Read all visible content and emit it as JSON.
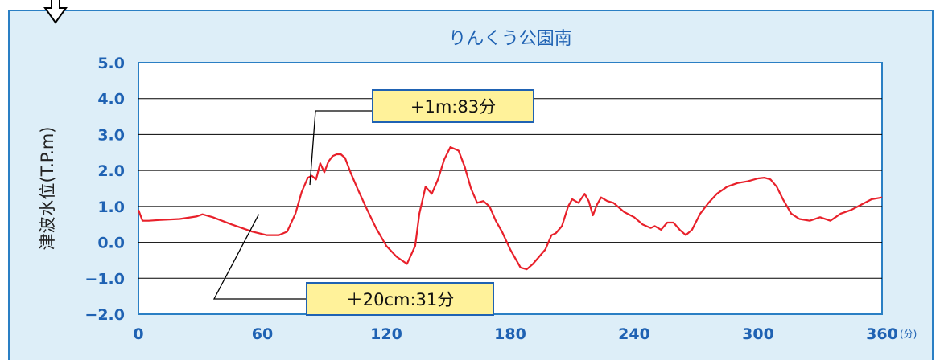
{
  "chart_data": {
    "type": "line",
    "title": "りんくう公園南",
    "ylabel": "津波水位(T.P.m)",
    "x_unit": "(分)",
    "xlim": [
      0,
      360
    ],
    "ylim": [
      -2.0,
      5.0
    ],
    "x_ticks": [
      0,
      60,
      120,
      180,
      240,
      300,
      360
    ],
    "y_ticks": [
      "5.0",
      "4.0",
      "3.0",
      "2.0",
      "1.0",
      "0.0",
      "−1.0",
      "−2.0"
    ],
    "grid": true,
    "series_color": "#e8202a",
    "series": [
      {
        "x": [
          0,
          2,
          5,
          10,
          20,
          28,
          31,
          36,
          45,
          55,
          62,
          68,
          72,
          76,
          79,
          82,
          84,
          86,
          88,
          90,
          92,
          94,
          96,
          98,
          100,
          103,
          106,
          110,
          115,
          120,
          125,
          130,
          134,
          136,
          139,
          142,
          145,
          148,
          151,
          153,
          155,
          158,
          161,
          164,
          167,
          170,
          173,
          176,
          180,
          185,
          188,
          191,
          194,
          197,
          200,
          202,
          205,
          208,
          210,
          213,
          216,
          218,
          220,
          222,
          224,
          227,
          230,
          235,
          240,
          244,
          248,
          250,
          253,
          256,
          259,
          262,
          265,
          268,
          272,
          276,
          280,
          285,
          290,
          295,
          300,
          303,
          306,
          309,
          312,
          316,
          320,
          325,
          330,
          335,
          340,
          345,
          350,
          355,
          360
        ],
        "y": [
          0.9,
          0.6,
          0.6,
          0.62,
          0.65,
          0.72,
          0.78,
          0.7,
          0.5,
          0.3,
          0.2,
          0.2,
          0.3,
          0.8,
          1.4,
          1.8,
          1.85,
          1.75,
          2.2,
          1.95,
          2.25,
          2.4,
          2.45,
          2.45,
          2.35,
          1.9,
          1.5,
          1.0,
          0.4,
          -0.1,
          -0.4,
          -0.6,
          -0.1,
          0.8,
          1.55,
          1.35,
          1.75,
          2.3,
          2.65,
          2.6,
          2.55,
          2.1,
          1.5,
          1.1,
          1.15,
          1.0,
          0.6,
          0.3,
          -0.2,
          -0.7,
          -0.75,
          -0.6,
          -0.4,
          -0.2,
          0.2,
          0.25,
          0.45,
          1.0,
          1.2,
          1.1,
          1.35,
          1.15,
          0.75,
          1.05,
          1.25,
          1.15,
          1.1,
          0.85,
          0.7,
          0.5,
          0.4,
          0.45,
          0.35,
          0.55,
          0.55,
          0.35,
          0.2,
          0.35,
          0.8,
          1.1,
          1.35,
          1.55,
          1.65,
          1.7,
          1.78,
          1.8,
          1.75,
          1.55,
          1.2,
          0.8,
          0.65,
          0.6,
          0.7,
          0.6,
          0.8,
          0.9,
          1.05,
          1.2,
          1.25
        ]
      }
    ],
    "annotations": [
      {
        "text": "+1m:83分",
        "x": 83,
        "y": 1.6
      },
      {
        "text": "＋20cm:31分",
        "x": 31,
        "y": 0.78
      }
    ],
    "annotation_bg": "#fff29a"
  }
}
